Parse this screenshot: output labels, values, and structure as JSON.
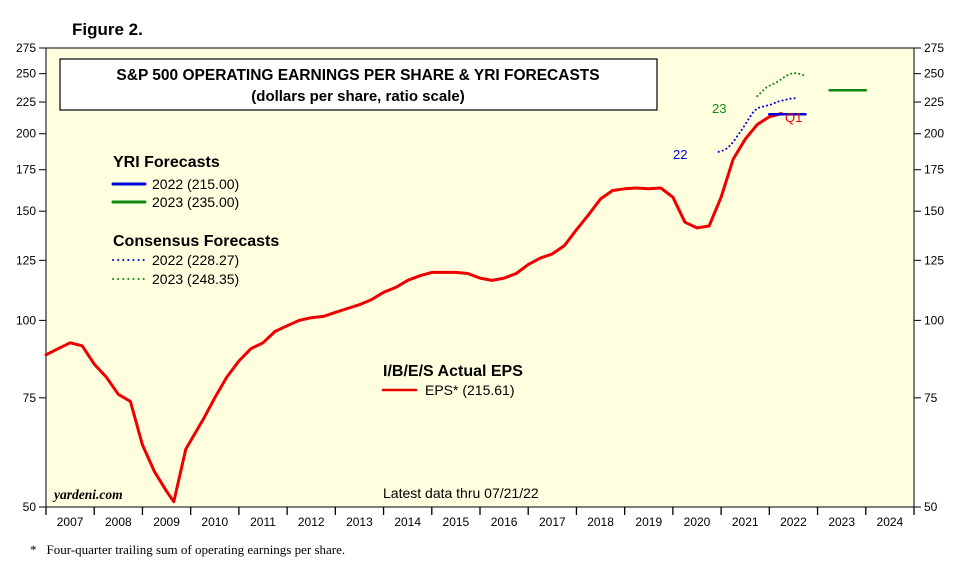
{
  "figure_label": "Figure 2.",
  "footnote": {
    "marker": "*",
    "text": "Four-quarter trailing sum of operating earnings per share."
  },
  "chart_data": {
    "type": "line",
    "title": "S&P 500 OPERATING EARNINGS PER SHARE & YRI FORECASTS",
    "subtitle": "(dollars per share, ratio scale)",
    "y_scale": "log",
    "ylim": [
      50,
      275
    ],
    "y_ticks": [
      50,
      75,
      100,
      125,
      150,
      175,
      200,
      225,
      250,
      275
    ],
    "xlim": [
      2007,
      2025
    ],
    "x_tick_labels": [
      "2007",
      "2008",
      "2009",
      "2010",
      "2011",
      "2012",
      "2013",
      "2014",
      "2015",
      "2016",
      "2017",
      "2018",
      "2019",
      "2020",
      "2021",
      "2022",
      "2023",
      "2024"
    ],
    "watermark": "yardeni.com",
    "note": "Latest data thru 07/21/22",
    "legend_groups": [
      {
        "heading": "YRI Forecasts",
        "entries": [
          {
            "label": "2022 (215.00)",
            "style": "solid",
            "color": "#0000dd"
          },
          {
            "label": "2023 (235.00)",
            "style": "solid",
            "color": "#118811"
          }
        ]
      },
      {
        "heading": "Consensus Forecasts",
        "entries": [
          {
            "label": "2022 (228.27)",
            "style": "dotted",
            "color": "#0000dd"
          },
          {
            "label": "2023 (248.35)",
            "style": "dotted",
            "color": "#118811"
          }
        ]
      },
      {
        "heading": "I/B/E/S Actual EPS",
        "entries": [
          {
            "label": "EPS* (215.61)",
            "style": "solid",
            "color": "#ee0000"
          }
        ]
      }
    ],
    "annotations": {
      "consensus_2022": "22",
      "consensus_2023": "23",
      "latest_quarter": "Q1"
    },
    "series": [
      {
        "name": "EPS* (215.61)",
        "color": "#ee0000",
        "style": "solid",
        "points": [
          [
            2007.0,
            88.0
          ],
          [
            2007.25,
            90.0
          ],
          [
            2007.5,
            92.0
          ],
          [
            2007.75,
            91.0
          ],
          [
            2008.0,
            85.0
          ],
          [
            2008.25,
            81.0
          ],
          [
            2008.5,
            76.0
          ],
          [
            2008.75,
            74.0
          ],
          [
            2009.0,
            63.0
          ],
          [
            2009.25,
            57.0
          ],
          [
            2009.5,
            53.0
          ],
          [
            2009.65,
            51.0
          ],
          [
            2009.9,
            62.0
          ],
          [
            2010.25,
            69.0
          ],
          [
            2010.5,
            75.0
          ],
          [
            2010.75,
            81.0
          ],
          [
            2011.0,
            86.0
          ],
          [
            2011.25,
            90.0
          ],
          [
            2011.5,
            92.0
          ],
          [
            2011.75,
            96.0
          ],
          [
            2012.0,
            98.0
          ],
          [
            2012.25,
            100.0
          ],
          [
            2012.5,
            101.0
          ],
          [
            2012.75,
            101.5
          ],
          [
            2013.0,
            103.0
          ],
          [
            2013.25,
            104.5
          ],
          [
            2013.5,
            106.0
          ],
          [
            2013.75,
            108.0
          ],
          [
            2014.0,
            111.0
          ],
          [
            2014.25,
            113.0
          ],
          [
            2014.5,
            116.0
          ],
          [
            2014.75,
            118.0
          ],
          [
            2015.0,
            119.5
          ],
          [
            2015.25,
            119.5
          ],
          [
            2015.5,
            119.5
          ],
          [
            2015.75,
            119.0
          ],
          [
            2016.0,
            117.0
          ],
          [
            2016.25,
            116.0
          ],
          [
            2016.5,
            117.0
          ],
          [
            2016.75,
            119.0
          ],
          [
            2017.0,
            123.0
          ],
          [
            2017.25,
            126.0
          ],
          [
            2017.5,
            128.0
          ],
          [
            2017.75,
            132.0
          ],
          [
            2018.0,
            140.0
          ],
          [
            2018.25,
            148.0
          ],
          [
            2018.5,
            157.0
          ],
          [
            2018.75,
            162.0
          ],
          [
            2019.0,
            163.0
          ],
          [
            2019.25,
            163.5
          ],
          [
            2019.5,
            163.0
          ],
          [
            2019.75,
            163.5
          ],
          [
            2020.0,
            158.0
          ],
          [
            2020.25,
            144.0
          ],
          [
            2020.5,
            141.0
          ],
          [
            2020.75,
            142.0
          ],
          [
            2021.0,
            158.0
          ],
          [
            2021.25,
            182.0
          ],
          [
            2021.5,
            196.0
          ],
          [
            2021.75,
            207.0
          ],
          [
            2022.0,
            213.0
          ],
          [
            2022.25,
            215.61
          ]
        ]
      },
      {
        "name": "2022 (215.00)",
        "color": "#0000dd",
        "style": "solid",
        "points": [
          [
            2022.0,
            215.0
          ],
          [
            2022.75,
            215.0
          ]
        ]
      },
      {
        "name": "2023 (235.00)",
        "color": "#118811",
        "style": "solid",
        "points": [
          [
            2023.25,
            235.0
          ],
          [
            2024.0,
            235.0
          ]
        ]
      },
      {
        "name": "2022 (228.27)",
        "color": "#0000dd",
        "style": "dotted",
        "points": [
          [
            2020.95,
            187.0
          ],
          [
            2021.05,
            188.0
          ],
          [
            2021.15,
            190.0
          ],
          [
            2021.25,
            194.0
          ],
          [
            2021.35,
            199.0
          ],
          [
            2021.45,
            204.0
          ],
          [
            2021.55,
            210.0
          ],
          [
            2021.65,
            216.0
          ],
          [
            2021.75,
            220.0
          ],
          [
            2021.85,
            221.0
          ],
          [
            2021.95,
            222.0
          ],
          [
            2022.05,
            223.0
          ],
          [
            2022.15,
            225.0
          ],
          [
            2022.25,
            226.0
          ],
          [
            2022.35,
            227.0
          ],
          [
            2022.45,
            228.0
          ],
          [
            2022.55,
            228.27
          ]
        ]
      },
      {
        "name": "2023 (248.35)",
        "color": "#118811",
        "style": "dotted",
        "points": [
          [
            2021.75,
            230.0
          ],
          [
            2021.85,
            234.0
          ],
          [
            2021.95,
            238.0
          ],
          [
            2022.05,
            240.0
          ],
          [
            2022.15,
            242.0
          ],
          [
            2022.25,
            245.0
          ],
          [
            2022.35,
            248.0
          ],
          [
            2022.45,
            250.0
          ],
          [
            2022.55,
            250.5
          ],
          [
            2022.65,
            249.5
          ],
          [
            2022.72,
            248.35
          ]
        ]
      }
    ]
  }
}
